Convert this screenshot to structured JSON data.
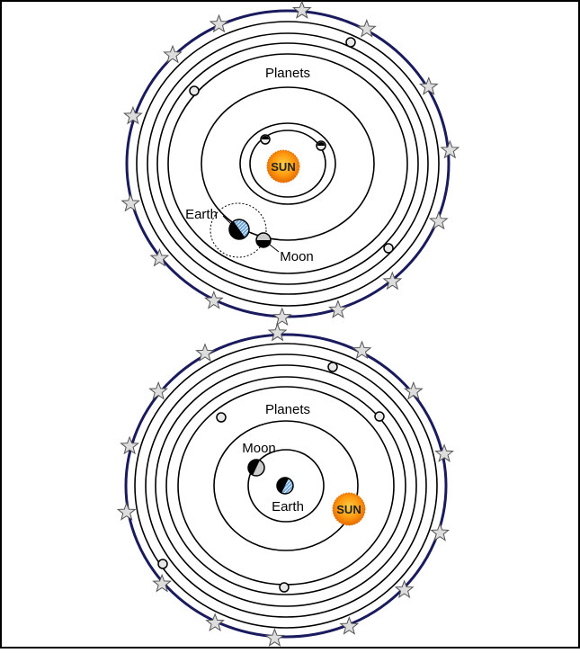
{
  "colors": {
    "frame_border": "#000000",
    "sphere_of_stars": "#1a1a5e",
    "orbit_stroke": "#000000",
    "star_fill": "#dddddd",
    "sun_fill": "#f08a00",
    "sun_text": "#222222",
    "planet_fill": "#e8e8e8",
    "earth_ocean": "#6fa8dc"
  },
  "heliocentric": {
    "planets_label": "Planets",
    "sun_label": "SUN",
    "earth_label": "Earth",
    "moon_label": "Moon"
  },
  "geocentric": {
    "planets_label": "Planets",
    "sun_label": "SUN",
    "earth_label": "Earth",
    "moon_label": "Moon"
  }
}
